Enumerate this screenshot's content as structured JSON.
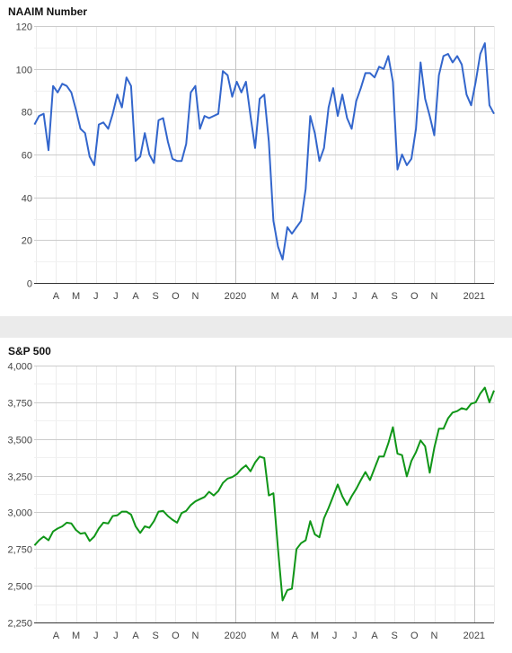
{
  "chart_data": [
    {
      "type": "line",
      "title": "NAAIM Number",
      "xlabel": "",
      "ylabel": "",
      "ylim": [
        0,
        120
      ],
      "yticks": [
        0,
        20,
        40,
        60,
        80,
        100,
        120
      ],
      "ytick_labels": [
        "0",
        "20",
        "40",
        "60",
        "80",
        "100",
        "120"
      ],
      "xticks": [
        {
          "label": "A",
          "month": 3
        },
        {
          "label": "M",
          "month": 4
        },
        {
          "label": "J",
          "month": 5
        },
        {
          "label": "J",
          "month": 6
        },
        {
          "label": "A",
          "month": 7
        },
        {
          "label": "S",
          "month": 8
        },
        {
          "label": "O",
          "month": 9
        },
        {
          "label": "N",
          "month": 10
        },
        {
          "label": "2020",
          "month": 12
        },
        {
          "label": "M",
          "month": 14
        },
        {
          "label": "A",
          "month": 15
        },
        {
          "label": "M",
          "month": 16
        },
        {
          "label": "J",
          "month": 17
        },
        {
          "label": "J",
          "month": 18
        },
        {
          "label": "A",
          "month": 19
        },
        {
          "label": "S",
          "month": 20
        },
        {
          "label": "O",
          "month": 21
        },
        {
          "label": "N",
          "month": 22
        },
        {
          "label": "2021",
          "month": 24
        }
      ],
      "x_range_months": [
        1.9,
        25.0
      ],
      "grid": true,
      "color": "#3366cc",
      "x_months": [
        1.92,
        2.15,
        2.38,
        2.62,
        2.85,
        3.08,
        3.31,
        3.54,
        3.77,
        4.0,
        4.23,
        4.46,
        4.69,
        4.92,
        5.15,
        5.38,
        5.62,
        5.85,
        6.08,
        6.31,
        6.54,
        6.77,
        7.0,
        7.23,
        7.46,
        7.69,
        7.92,
        8.15,
        8.38,
        8.62,
        8.85,
        9.08,
        9.31,
        9.54,
        9.77,
        10.0,
        10.23,
        10.46,
        10.69,
        10.92,
        11.15,
        11.38,
        11.62,
        11.85,
        12.08,
        12.31,
        12.54,
        12.77,
        13.0,
        13.23,
        13.46,
        13.69,
        13.92,
        14.15,
        14.38,
        14.62,
        14.85,
        15.08,
        15.31,
        15.54,
        15.77,
        16.0,
        16.23,
        16.46,
        16.69,
        16.92,
        17.15,
        17.38,
        17.62,
        17.85,
        18.08,
        18.31,
        18.54,
        18.77,
        19.0,
        19.23,
        19.46,
        19.69,
        19.92,
        20.15,
        20.38,
        20.62,
        20.85,
        21.08,
        21.31,
        21.54,
        21.77,
        22.0,
        22.23,
        22.46,
        22.69,
        22.92,
        23.15,
        23.38,
        23.62,
        23.85,
        24.08,
        24.31,
        24.54,
        24.77,
        25.0
      ],
      "series": [
        {
          "values": [
            74,
            78,
            79,
            62,
            92,
            89,
            93,
            92,
            89,
            81,
            72,
            70,
            59,
            55,
            74,
            75,
            72,
            79,
            88,
            82,
            96,
            92,
            57,
            59,
            70,
            60,
            56,
            76,
            77,
            66,
            58,
            57,
            57,
            65,
            89,
            92,
            72,
            78,
            77,
            78,
            79,
            99,
            97,
            87,
            94,
            89,
            94,
            78,
            63,
            86,
            88,
            66,
            29,
            17,
            11,
            26,
            23,
            26,
            29,
            44,
            78,
            70,
            57,
            63,
            82,
            91,
            78,
            88,
            77,
            72,
            85,
            91,
            98,
            98,
            96,
            101,
            100,
            106,
            94,
            53,
            60,
            55,
            58,
            72,
            103,
            86,
            78,
            69,
            97,
            106,
            107,
            103,
            106,
            102,
            88,
            83,
            94,
            107,
            112,
            83,
            79
          ]
        }
      ]
    },
    {
      "type": "line",
      "title": "S&P 500",
      "xlabel": "",
      "ylabel": "",
      "ylim": [
        2250,
        4000
      ],
      "yticks": [
        2250,
        2500,
        2750,
        3000,
        3250,
        3500,
        3750,
        4000
      ],
      "ytick_labels": [
        "2,250",
        "2,500",
        "2,750",
        "3,000",
        "3,250",
        "3,500",
        "3,750",
        "4,000"
      ],
      "xticks": [
        {
          "label": "A",
          "month": 3
        },
        {
          "label": "M",
          "month": 4
        },
        {
          "label": "J",
          "month": 5
        },
        {
          "label": "J",
          "month": 6
        },
        {
          "label": "A",
          "month": 7
        },
        {
          "label": "S",
          "month": 8
        },
        {
          "label": "O",
          "month": 9
        },
        {
          "label": "N",
          "month": 10
        },
        {
          "label": "2020",
          "month": 12
        },
        {
          "label": "M",
          "month": 14
        },
        {
          "label": "A",
          "month": 15
        },
        {
          "label": "M",
          "month": 16
        },
        {
          "label": "J",
          "month": 17
        },
        {
          "label": "J",
          "month": 18
        },
        {
          "label": "A",
          "month": 19
        },
        {
          "label": "S",
          "month": 20
        },
        {
          "label": "O",
          "month": 21
        },
        {
          "label": "N",
          "month": 22
        },
        {
          "label": "2021",
          "month": 24
        }
      ],
      "x_range_months": [
        1.9,
        25.0
      ],
      "grid": true,
      "color": "#109618",
      "x_months": [
        1.92,
        2.15,
        2.38,
        2.62,
        2.85,
        3.08,
        3.31,
        3.54,
        3.77,
        4.0,
        4.23,
        4.46,
        4.69,
        4.92,
        5.15,
        5.38,
        5.62,
        5.85,
        6.08,
        6.31,
        6.54,
        6.77,
        7.0,
        7.23,
        7.46,
        7.69,
        7.92,
        8.15,
        8.38,
        8.62,
        8.85,
        9.08,
        9.31,
        9.54,
        9.77,
        10.0,
        10.23,
        10.46,
        10.69,
        10.92,
        11.15,
        11.38,
        11.62,
        11.85,
        12.08,
        12.31,
        12.54,
        12.77,
        13.0,
        13.23,
        13.46,
        13.69,
        13.92,
        14.15,
        14.38,
        14.62,
        14.85,
        15.08,
        15.31,
        15.54,
        15.77,
        16.0,
        16.23,
        16.46,
        16.69,
        16.92,
        17.15,
        17.38,
        17.62,
        17.85,
        18.08,
        18.31,
        18.54,
        18.77,
        19.0,
        19.23,
        19.46,
        19.69,
        19.92,
        20.15,
        20.38,
        20.62,
        20.85,
        21.08,
        21.31,
        21.54,
        21.77,
        22.0,
        22.23,
        22.46,
        22.69,
        22.92,
        23.15,
        23.38,
        23.62,
        23.85,
        24.08,
        24.31,
        24.54,
        24.77,
        25.0
      ],
      "series": [
        {
          "values": [
            2775,
            2810,
            2835,
            2810,
            2870,
            2890,
            2905,
            2930,
            2925,
            2880,
            2855,
            2860,
            2805,
            2835,
            2890,
            2930,
            2925,
            2975,
            2980,
            3005,
            3005,
            2985,
            2905,
            2860,
            2905,
            2895,
            2940,
            3005,
            3010,
            2975,
            2950,
            2930,
            2995,
            3010,
            3050,
            3075,
            3090,
            3105,
            3140,
            3115,
            3145,
            3200,
            3230,
            3240,
            3260,
            3295,
            3320,
            3280,
            3340,
            3380,
            3370,
            3115,
            3130,
            2750,
            2400,
            2470,
            2480,
            2750,
            2790,
            2810,
            2940,
            2850,
            2830,
            2960,
            3030,
            3110,
            3190,
            3110,
            3050,
            3110,
            3160,
            3220,
            3275,
            3220,
            3300,
            3380,
            3380,
            3470,
            3580,
            3400,
            3390,
            3245,
            3350,
            3410,
            3490,
            3450,
            3270,
            3440,
            3570,
            3570,
            3640,
            3680,
            3690,
            3710,
            3700,
            3740,
            3750,
            3810,
            3850,
            3750,
            3830
          ]
        }
      ]
    }
  ]
}
